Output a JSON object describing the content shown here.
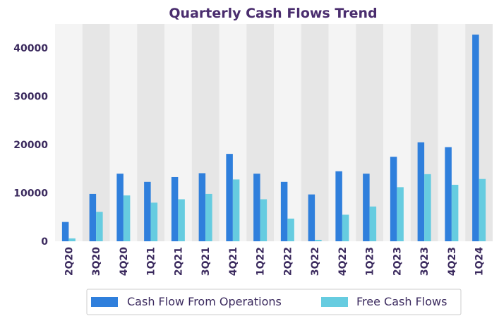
{
  "colors": {
    "ops": "#2f7fdc",
    "fcf": "#66cce0",
    "band_light": "#f4f4f4",
    "band_dark": "#e6e6e6",
    "text": "#3b2a5e"
  },
  "chart_data": {
    "type": "bar",
    "title": "Quarterly Cash Flows Trend",
    "xlabel": "",
    "ylabel": "",
    "categories": [
      "2Q20",
      "3Q20",
      "4Q20",
      "1Q21",
      "2Q21",
      "3Q21",
      "4Q21",
      "1Q22",
      "2Q22",
      "3Q22",
      "4Q22",
      "1Q23",
      "2Q23",
      "3Q23",
      "4Q23",
      "1Q24"
    ],
    "series": [
      {
        "name": "Cash Flow From Operations",
        "values": [
          4000,
          9800,
          14000,
          12300,
          13300,
          14100,
          18100,
          14000,
          12300,
          9700,
          14500,
          14000,
          17500,
          20500,
          19500,
          42800
        ]
      },
      {
        "name": "Free Cash Flows",
        "values": [
          600,
          6100,
          9500,
          8000,
          8700,
          9800,
          12800,
          8700,
          4700,
          300,
          5500,
          7200,
          11200,
          13900,
          11700,
          12900
        ]
      }
    ],
    "ylim": [
      0,
      45000
    ],
    "yticks": [
      "0",
      "10000",
      "20000",
      "30000",
      "40000"
    ],
    "legend_position": "bottom",
    "grid": false
  }
}
